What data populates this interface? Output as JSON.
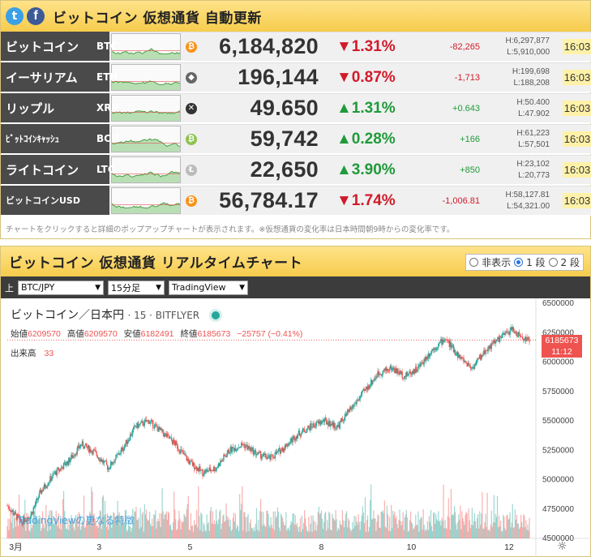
{
  "ticker": {
    "title": "ビットコイン 仮想通貨 自動更新",
    "twitter_glyph": "t",
    "facebook_glyph": "f",
    "note": "チャートをクリックすると詳細のポップアップチャートが表示されます。※仮想通貨の変化率は日本時間朝9時からの変化率です。",
    "rows": [
      {
        "name": "ビットコイン",
        "symbol": "BTC",
        "icon": "bitcoin-icon",
        "icon_color": "#f7931a",
        "icon_glyph": "₿",
        "price": "6,184,820",
        "pct": "▼1.31%",
        "dir": "down",
        "diff": "-82,265",
        "high": "H:6,297,877",
        "low": "L:5,910,000",
        "time": "16:03"
      },
      {
        "name": "イーサリアム",
        "symbol": "ETH",
        "icon": "ethereum-icon",
        "icon_color": "#666666",
        "icon_glyph": "◆",
        "price": "196,144",
        "pct": "▼0.87%",
        "dir": "down",
        "diff": "-1,713",
        "high": "H:199,698",
        "low": "L:188,208",
        "time": "16:03"
      },
      {
        "name": "リップル",
        "symbol": "XRP",
        "icon": "ripple-icon",
        "icon_color": "#333333",
        "icon_glyph": "✕",
        "price": "49.650",
        "pct": "▲1.31%",
        "dir": "up",
        "diff": "+0.643",
        "high": "H:50.400",
        "low": "L:47.902",
        "time": "16:03"
      },
      {
        "name": "ﾋﾞｯﾄｺｲﾝｷｬｯｼｭ",
        "symbol": "BCH",
        "icon": "bitcoin-cash-icon",
        "icon_color": "#8dc351",
        "icon_glyph": "₿",
        "price": "59,742",
        "pct": "▲0.28%",
        "dir": "up",
        "diff": "+166",
        "high": "H:61,223",
        "low": "L:57,501",
        "time": "16:03"
      },
      {
        "name": "ライトコイン",
        "symbol": "LTC",
        "icon": "litecoin-icon",
        "icon_color": "#bbbbbb",
        "icon_glyph": "Ł",
        "price": "22,650",
        "pct": "▲3.90%",
        "dir": "up",
        "diff": "+850",
        "high": "H:23,102",
        "low": "L:20,773",
        "time": "16:03"
      },
      {
        "name": "ビットコインUSD",
        "symbol": "",
        "icon": "bitcoin-icon",
        "icon_color": "#f7931a",
        "icon_glyph": "₿",
        "price": "56,784.17",
        "pct": "▼1.74%",
        "dir": "down",
        "diff": "-1,006.81",
        "high": "H:58,127.81",
        "low": "L:54,321.00",
        "time": "16:03"
      }
    ]
  },
  "chart_panel": {
    "title": "ビットコイン 仮想通貨 リアルタイムチャート",
    "options": [
      "非表示",
      "1 段",
      "2 段"
    ],
    "selected_option": "1 段",
    "toolbar": {
      "label": "上",
      "pair": "BTC/JPY",
      "interval": "15分足",
      "provider": "TradingView"
    },
    "tv": {
      "symbol_title": "ビットコイン／日本円",
      "interval_label": "· 15 · BITFLYER",
      "open_label": "始値",
      "open": "6209570",
      "high_label": "高値",
      "high": "6209570",
      "low_label": "安値",
      "low": "6182491",
      "close_label": "終値",
      "close": "6185673",
      "change": "−25757 (−0.41%)",
      "volume_label": "出来高",
      "volume": "33",
      "promo_link": "TradingViewの更なる特徴",
      "last_price": "6185673",
      "countdown": "11:12",
      "gear_glyph": "☼"
    }
  },
  "chart_data": {
    "type": "candlestick",
    "title": "ビットコイン／日本円",
    "x_ticks": [
      "3月",
      "3",
      "5",
      "8",
      "10",
      "12"
    ],
    "y_ticks": [
      "6500000",
      "6250000",
      "6000000",
      "5750000",
      "5500000",
      "5250000",
      "5000000",
      "4750000",
      "4500000"
    ],
    "ylim": [
      4500000,
      6500000
    ],
    "close_path": [
      [
        0,
        4780000
      ],
      [
        4,
        4640000
      ],
      [
        7,
        4700000
      ],
      [
        10,
        4900000
      ],
      [
        14,
        5050000
      ],
      [
        18,
        5150000
      ],
      [
        22,
        5300000
      ],
      [
        26,
        5230000
      ],
      [
        30,
        5100000
      ],
      [
        34,
        5250000
      ],
      [
        38,
        5450000
      ],
      [
        42,
        5500000
      ],
      [
        46,
        5400000
      ],
      [
        50,
        5300000
      ],
      [
        54,
        5150000
      ],
      [
        58,
        5060000
      ],
      [
        62,
        5100000
      ],
      [
        66,
        5250000
      ],
      [
        70,
        5300000
      ],
      [
        74,
        5220000
      ],
      [
        78,
        5180000
      ],
      [
        82,
        5270000
      ],
      [
        86,
        5380000
      ],
      [
        90,
        5450000
      ],
      [
        94,
        5500000
      ],
      [
        98,
        5450000
      ],
      [
        102,
        5600000
      ],
      [
        106,
        5750000
      ],
      [
        110,
        5900000
      ],
      [
        114,
        5950000
      ],
      [
        118,
        5880000
      ],
      [
        122,
        5950000
      ],
      [
        126,
        6100000
      ],
      [
        130,
        6200000
      ],
      [
        134,
        6050000
      ],
      [
        138,
        5950000
      ],
      [
        142,
        6100000
      ],
      [
        146,
        6200000
      ],
      [
        150,
        6280000
      ],
      [
        152,
        6220000
      ],
      [
        155,
        6185673
      ]
    ],
    "last_close": 6185673
  }
}
